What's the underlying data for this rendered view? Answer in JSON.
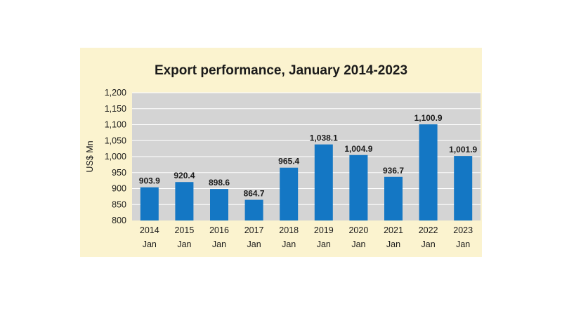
{
  "chart_data": {
    "type": "bar",
    "title": "Export performance, January 2014-2023",
    "ylabel": "US$ Mn",
    "xlabel": "",
    "ylim": [
      800,
      1200
    ],
    "yticks": [
      "800",
      "850",
      "900",
      "950",
      "1,000",
      "1,050",
      "1,100",
      "1,150",
      "1,200"
    ],
    "categories": [
      [
        "2014",
        "Jan"
      ],
      [
        "2015",
        "Jan"
      ],
      [
        "2016",
        "Jan"
      ],
      [
        "2017",
        "Jan"
      ],
      [
        "2018",
        "Jan"
      ],
      [
        "2019",
        "Jan"
      ],
      [
        "2020",
        "Jan"
      ],
      [
        "2021",
        "Jan"
      ],
      [
        "2022",
        "Jan"
      ],
      [
        "2023",
        "Jan"
      ]
    ],
    "values": [
      903.9,
      920.4,
      898.6,
      864.7,
      965.4,
      1038.1,
      1004.9,
      936.7,
      1100.9,
      1001.9
    ],
    "value_labels": [
      "903.9",
      "920.4",
      "898.6",
      "864.7",
      "965.4",
      "1,038.1",
      "1,004.9",
      "936.7",
      "1,100.9",
      "1,001.9"
    ],
    "grid": true,
    "colors": {
      "bar": "#1477c4",
      "plot_bg": "#d4d4d4",
      "panel_bg": "#fbf3cf",
      "grid": "#ffffff"
    }
  }
}
